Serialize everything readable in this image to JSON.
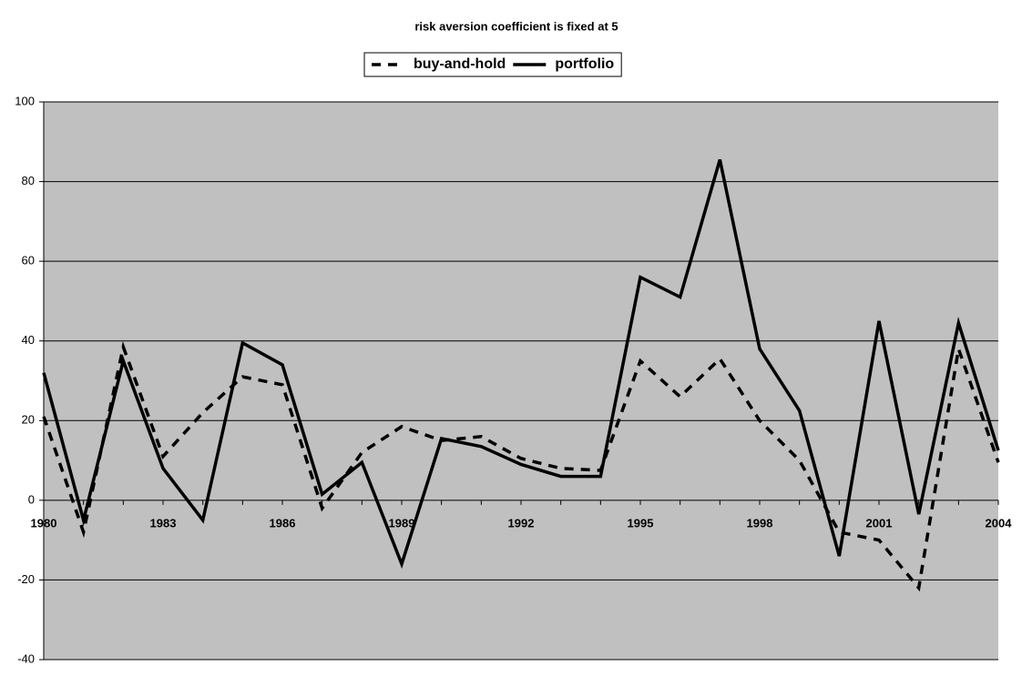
{
  "chart_data": {
    "type": "line",
    "title": "risk aversion coefficient is fixed at 5",
    "categories": [
      "1980",
      null,
      null,
      "1983",
      null,
      null,
      "1986",
      null,
      null,
      "1989",
      null,
      null,
      "1992",
      null,
      null,
      "1995",
      null,
      null,
      "1998",
      null,
      null,
      "2001",
      null,
      null,
      "2004"
    ],
    "series": [
      {
        "name": "buy-and-hold",
        "color": "#000000",
        "style": "dashed",
        "values": [
          21,
          -8,
          38.5,
          11,
          22,
          31,
          29,
          -2,
          12,
          18.5,
          15,
          16,
          10.5,
          8,
          7.5,
          35,
          26,
          35.5,
          20,
          10,
          -8,
          -10,
          -22,
          38,
          9.5
        ]
      },
      {
        "name": "portfolio",
        "color": "#000000",
        "style": "solid",
        "values": [
          32,
          -5,
          35,
          8,
          -5,
          39.5,
          34,
          1.5,
          9.5,
          -16,
          15.5,
          13.5,
          9,
          6,
          6,
          56,
          51,
          85.5,
          38,
          22.5,
          -14,
          45,
          -3.5,
          44.5,
          12.5
        ]
      }
    ],
    "ylim": [
      -40,
      100
    ],
    "yticks": [
      -40,
      -20,
      0,
      20,
      40,
      60,
      80,
      100
    ],
    "grid": true,
    "plot_background": "#c0c0c0",
    "legend": "top"
  }
}
